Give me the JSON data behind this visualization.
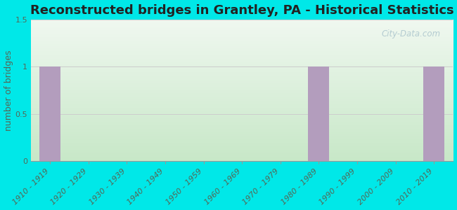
{
  "title": "Reconstructed bridges in Grantley, PA - Historical Statistics",
  "ylabel": "number of bridges",
  "categories": [
    "1910 - 1919",
    "1920 - 1929",
    "1930 - 1939",
    "1940 - 1949",
    "1950 - 1959",
    "1960 - 1969",
    "1970 - 1979",
    "1980 - 1989",
    "1990 - 1999",
    "2000 - 2009",
    "2010 - 2019"
  ],
  "values": [
    1,
    0,
    0,
    0,
    0,
    0,
    0,
    1,
    0,
    0,
    1
  ],
  "bar_color": "#b39dbd",
  "background_outer": "#00e8e8",
  "gradient_bottom": "#c8e8c8",
  "gradient_top": "#f0f8f0",
  "ylim": [
    0,
    1.5
  ],
  "yticks": [
    0,
    0.5,
    1,
    1.5
  ],
  "grid_color": "#cccccc",
  "title_fontsize": 13,
  "label_fontsize": 9,
  "tick_fontsize": 8,
  "watermark": "City-Data.com"
}
